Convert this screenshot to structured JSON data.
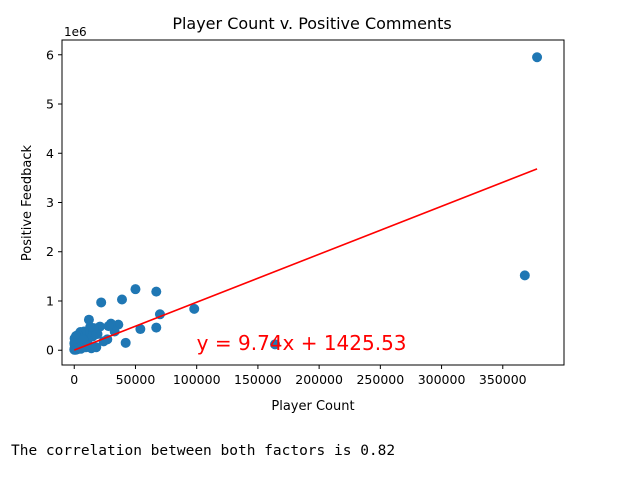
{
  "chart_data": {
    "type": "scatter",
    "title": "Player Count v. Positive Comments",
    "xlabel": "Player Count",
    "ylabel": "Positive Feedback",
    "y_offset_text": "1e6",
    "xlim": [
      -10000,
      400000
    ],
    "ylim": [
      -0.3,
      6.3
    ],
    "y_scale_factor": 1000000,
    "x_ticks": [
      0,
      50000,
      100000,
      150000,
      200000,
      250000,
      300000,
      350000
    ],
    "x_tick_labels": [
      "0",
      "50000",
      "100000",
      "150000",
      "200000",
      "250000",
      "300000",
      "350000"
    ],
    "y_ticks": [
      0,
      1,
      2,
      3,
      4,
      5,
      6
    ],
    "y_tick_labels": [
      "0",
      "1",
      "2",
      "3",
      "4",
      "5",
      "6"
    ],
    "grid": false,
    "points": [
      [
        378000,
        5.95
      ],
      [
        368000,
        1.52
      ],
      [
        164000,
        0.12
      ],
      [
        98000,
        0.84
      ],
      [
        70000,
        0.73
      ],
      [
        67000,
        1.19
      ],
      [
        67000,
        0.46
      ],
      [
        50000,
        1.24
      ],
      [
        54000,
        0.43
      ],
      [
        39000,
        1.03
      ],
      [
        42000,
        0.15
      ],
      [
        36000,
        0.52
      ],
      [
        33000,
        0.38
      ],
      [
        30000,
        0.54
      ],
      [
        28000,
        0.49
      ],
      [
        27000,
        0.22
      ],
      [
        24000,
        0.18
      ],
      [
        22000,
        0.97
      ],
      [
        21000,
        0.48
      ],
      [
        19000,
        0.33
      ],
      [
        18000,
        0.06
      ],
      [
        16000,
        0.45
      ],
      [
        15000,
        0.28
      ],
      [
        13000,
        0.47
      ],
      [
        12000,
        0.62
      ],
      [
        11000,
        0.22
      ],
      [
        10000,
        0.33
      ],
      [
        9000,
        0.14
      ],
      [
        8000,
        0.38
      ],
      [
        7000,
        0.09
      ],
      [
        6000,
        0.26
      ],
      [
        5000,
        0.37
      ],
      [
        4000,
        0.18
      ],
      [
        3500,
        0.07
      ],
      [
        3000,
        0.31
      ],
      [
        2500,
        0.22
      ],
      [
        2000,
        0.12
      ],
      [
        1500,
        0.29
      ],
      [
        1000,
        0.05
      ],
      [
        800,
        0.17
      ],
      [
        500,
        0.09
      ],
      [
        300,
        0.24
      ],
      [
        200,
        0.03
      ],
      [
        100,
        0.14
      ],
      [
        50,
        0.01
      ],
      [
        600,
        0.02
      ],
      [
        1200,
        0.01
      ],
      [
        1800,
        0.04
      ],
      [
        2600,
        0.02
      ],
      [
        4200,
        0.05
      ],
      [
        5500,
        0.03
      ],
      [
        6500,
        0.12
      ],
      [
        7500,
        0.21
      ],
      [
        9500,
        0.06
      ],
      [
        11500,
        0.1
      ],
      [
        14000,
        0.04
      ]
    ],
    "regression": {
      "slope": 9.74,
      "intercept": 1425.53,
      "x_range": [
        0,
        378000
      ],
      "color": "#ff0000"
    },
    "annotation": {
      "text": "y = 9.74x + 1425.53",
      "x": 100000,
      "y": 0.0,
      "color": "#ff0000"
    },
    "point_color": "#1f77b4"
  },
  "output_text": "The correlation between both factors is 0.82"
}
